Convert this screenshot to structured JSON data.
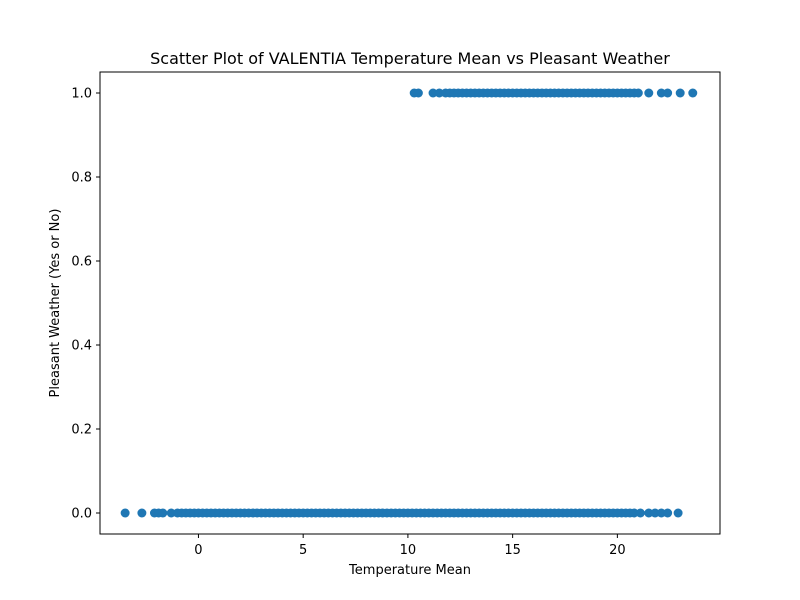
{
  "chart_data": {
    "type": "scatter",
    "title": "Scatter Plot of VALENTIA Temperature Mean vs Pleasant Weather",
    "xlabel": "Temperature Mean",
    "ylabel": "Pleasant Weather (Yes or No)",
    "xlim": [
      -4.7,
      24.9
    ],
    "ylim": [
      -0.05,
      1.05
    ],
    "xticks": [
      0,
      5,
      10,
      15,
      20
    ],
    "xtick_labels": [
      "0",
      "5",
      "10",
      "15",
      "20"
    ],
    "yticks": [
      0.0,
      0.2,
      0.4,
      0.6,
      0.8,
      1.0
    ],
    "ytick_labels": [
      "0.0",
      "0.2",
      "0.4",
      "0.6",
      "0.8",
      "1.0"
    ],
    "grid": false,
    "marker_color": "#1f77b4",
    "series": [
      {
        "points": [
          {
            "x": -3.5,
            "y": 0
          },
          {
            "x": -2.7,
            "y": 0
          },
          {
            "x": -2.1,
            "y": 0
          },
          {
            "x": -1.9,
            "y": 0
          },
          {
            "x": -1.7,
            "y": 0
          },
          {
            "x": -1.3,
            "y": 0
          },
          {
            "x": -1.0,
            "y": 0
          },
          {
            "x": -0.8,
            "y": 0
          },
          {
            "x": -0.6,
            "y": 0
          },
          {
            "x": -0.4,
            "y": 0
          },
          {
            "x": -0.2,
            "y": 0
          },
          {
            "x": 0.0,
            "y": 0
          },
          {
            "x": 0.2,
            "y": 0
          },
          {
            "x": 0.4,
            "y": 0
          },
          {
            "x": 0.6,
            "y": 0
          },
          {
            "x": 0.8,
            "y": 0
          },
          {
            "x": 1.0,
            "y": 0
          },
          {
            "x": 1.2,
            "y": 0
          },
          {
            "x": 1.4,
            "y": 0
          },
          {
            "x": 1.6,
            "y": 0
          },
          {
            "x": 1.8,
            "y": 0
          },
          {
            "x": 2.0,
            "y": 0
          },
          {
            "x": 2.2,
            "y": 0
          },
          {
            "x": 2.4,
            "y": 0
          },
          {
            "x": 2.6,
            "y": 0
          },
          {
            "x": 2.8,
            "y": 0
          },
          {
            "x": 3.0,
            "y": 0
          },
          {
            "x": 3.2,
            "y": 0
          },
          {
            "x": 3.4,
            "y": 0
          },
          {
            "x": 3.6,
            "y": 0
          },
          {
            "x": 3.8,
            "y": 0
          },
          {
            "x": 4.0,
            "y": 0
          },
          {
            "x": 4.2,
            "y": 0
          },
          {
            "x": 4.4,
            "y": 0
          },
          {
            "x": 4.6,
            "y": 0
          },
          {
            "x": 4.8,
            "y": 0
          },
          {
            "x": 5.0,
            "y": 0
          },
          {
            "x": 5.2,
            "y": 0
          },
          {
            "x": 5.4,
            "y": 0
          },
          {
            "x": 5.6,
            "y": 0
          },
          {
            "x": 5.8,
            "y": 0
          },
          {
            "x": 6.0,
            "y": 0
          },
          {
            "x": 6.2,
            "y": 0
          },
          {
            "x": 6.4,
            "y": 0
          },
          {
            "x": 6.6,
            "y": 0
          },
          {
            "x": 6.8,
            "y": 0
          },
          {
            "x": 7.0,
            "y": 0
          },
          {
            "x": 7.2,
            "y": 0
          },
          {
            "x": 7.4,
            "y": 0
          },
          {
            "x": 7.6,
            "y": 0
          },
          {
            "x": 7.8,
            "y": 0
          },
          {
            "x": 8.0,
            "y": 0
          },
          {
            "x": 8.2,
            "y": 0
          },
          {
            "x": 8.4,
            "y": 0
          },
          {
            "x": 8.6,
            "y": 0
          },
          {
            "x": 8.8,
            "y": 0
          },
          {
            "x": 9.0,
            "y": 0
          },
          {
            "x": 9.2,
            "y": 0
          },
          {
            "x": 9.4,
            "y": 0
          },
          {
            "x": 9.6,
            "y": 0
          },
          {
            "x": 9.8,
            "y": 0
          },
          {
            "x": 10.0,
            "y": 0
          },
          {
            "x": 10.2,
            "y": 0
          },
          {
            "x": 10.4,
            "y": 0
          },
          {
            "x": 10.6,
            "y": 0
          },
          {
            "x": 10.8,
            "y": 0
          },
          {
            "x": 11.0,
            "y": 0
          },
          {
            "x": 11.2,
            "y": 0
          },
          {
            "x": 11.4,
            "y": 0
          },
          {
            "x": 11.6,
            "y": 0
          },
          {
            "x": 11.8,
            "y": 0
          },
          {
            "x": 12.0,
            "y": 0
          },
          {
            "x": 12.2,
            "y": 0
          },
          {
            "x": 12.4,
            "y": 0
          },
          {
            "x": 12.6,
            "y": 0
          },
          {
            "x": 12.8,
            "y": 0
          },
          {
            "x": 13.0,
            "y": 0
          },
          {
            "x": 13.2,
            "y": 0
          },
          {
            "x": 13.4,
            "y": 0
          },
          {
            "x": 13.6,
            "y": 0
          },
          {
            "x": 13.8,
            "y": 0
          },
          {
            "x": 14.0,
            "y": 0
          },
          {
            "x": 14.2,
            "y": 0
          },
          {
            "x": 14.4,
            "y": 0
          },
          {
            "x": 14.6,
            "y": 0
          },
          {
            "x": 14.8,
            "y": 0
          },
          {
            "x": 15.0,
            "y": 0
          },
          {
            "x": 15.2,
            "y": 0
          },
          {
            "x": 15.4,
            "y": 0
          },
          {
            "x": 15.6,
            "y": 0
          },
          {
            "x": 15.8,
            "y": 0
          },
          {
            "x": 16.0,
            "y": 0
          },
          {
            "x": 16.2,
            "y": 0
          },
          {
            "x": 16.4,
            "y": 0
          },
          {
            "x": 16.6,
            "y": 0
          },
          {
            "x": 16.8,
            "y": 0
          },
          {
            "x": 17.0,
            "y": 0
          },
          {
            "x": 17.2,
            "y": 0
          },
          {
            "x": 17.4,
            "y": 0
          },
          {
            "x": 17.6,
            "y": 0
          },
          {
            "x": 17.8,
            "y": 0
          },
          {
            "x": 18.0,
            "y": 0
          },
          {
            "x": 18.2,
            "y": 0
          },
          {
            "x": 18.4,
            "y": 0
          },
          {
            "x": 18.6,
            "y": 0
          },
          {
            "x": 18.8,
            "y": 0
          },
          {
            "x": 19.0,
            "y": 0
          },
          {
            "x": 19.2,
            "y": 0
          },
          {
            "x": 19.4,
            "y": 0
          },
          {
            "x": 19.6,
            "y": 0
          },
          {
            "x": 19.8,
            "y": 0
          },
          {
            "x": 20.0,
            "y": 0
          },
          {
            "x": 20.2,
            "y": 0
          },
          {
            "x": 20.4,
            "y": 0
          },
          {
            "x": 20.6,
            "y": 0
          },
          {
            "x": 20.8,
            "y": 0
          },
          {
            "x": 21.1,
            "y": 0
          },
          {
            "x": 21.5,
            "y": 0
          },
          {
            "x": 21.8,
            "y": 0
          },
          {
            "x": 22.1,
            "y": 0
          },
          {
            "x": 22.4,
            "y": 0
          },
          {
            "x": 22.9,
            "y": 0
          },
          {
            "x": 10.3,
            "y": 1
          },
          {
            "x": 10.5,
            "y": 1
          },
          {
            "x": 11.2,
            "y": 1
          },
          {
            "x": 11.5,
            "y": 1
          },
          {
            "x": 11.8,
            "y": 1
          },
          {
            "x": 12.0,
            "y": 1
          },
          {
            "x": 12.2,
            "y": 1
          },
          {
            "x": 12.4,
            "y": 1
          },
          {
            "x": 12.6,
            "y": 1
          },
          {
            "x": 12.8,
            "y": 1
          },
          {
            "x": 13.0,
            "y": 1
          },
          {
            "x": 13.2,
            "y": 1
          },
          {
            "x": 13.4,
            "y": 1
          },
          {
            "x": 13.6,
            "y": 1
          },
          {
            "x": 13.8,
            "y": 1
          },
          {
            "x": 14.0,
            "y": 1
          },
          {
            "x": 14.2,
            "y": 1
          },
          {
            "x": 14.4,
            "y": 1
          },
          {
            "x": 14.6,
            "y": 1
          },
          {
            "x": 14.8,
            "y": 1
          },
          {
            "x": 15.0,
            "y": 1
          },
          {
            "x": 15.2,
            "y": 1
          },
          {
            "x": 15.4,
            "y": 1
          },
          {
            "x": 15.6,
            "y": 1
          },
          {
            "x": 15.8,
            "y": 1
          },
          {
            "x": 16.0,
            "y": 1
          },
          {
            "x": 16.2,
            "y": 1
          },
          {
            "x": 16.4,
            "y": 1
          },
          {
            "x": 16.6,
            "y": 1
          },
          {
            "x": 16.8,
            "y": 1
          },
          {
            "x": 17.0,
            "y": 1
          },
          {
            "x": 17.2,
            "y": 1
          },
          {
            "x": 17.4,
            "y": 1
          },
          {
            "x": 17.6,
            "y": 1
          },
          {
            "x": 17.8,
            "y": 1
          },
          {
            "x": 18.0,
            "y": 1
          },
          {
            "x": 18.2,
            "y": 1
          },
          {
            "x": 18.4,
            "y": 1
          },
          {
            "x": 18.6,
            "y": 1
          },
          {
            "x": 18.8,
            "y": 1
          },
          {
            "x": 19.0,
            "y": 1
          },
          {
            "x": 19.2,
            "y": 1
          },
          {
            "x": 19.4,
            "y": 1
          },
          {
            "x": 19.6,
            "y": 1
          },
          {
            "x": 19.8,
            "y": 1
          },
          {
            "x": 20.0,
            "y": 1
          },
          {
            "x": 20.2,
            "y": 1
          },
          {
            "x": 20.4,
            "y": 1
          },
          {
            "x": 20.6,
            "y": 1
          },
          {
            "x": 20.8,
            "y": 1
          },
          {
            "x": 21.0,
            "y": 1
          },
          {
            "x": 21.5,
            "y": 1
          },
          {
            "x": 22.1,
            "y": 1
          },
          {
            "x": 22.4,
            "y": 1
          },
          {
            "x": 23.0,
            "y": 1
          },
          {
            "x": 23.6,
            "y": 1
          }
        ]
      }
    ]
  }
}
